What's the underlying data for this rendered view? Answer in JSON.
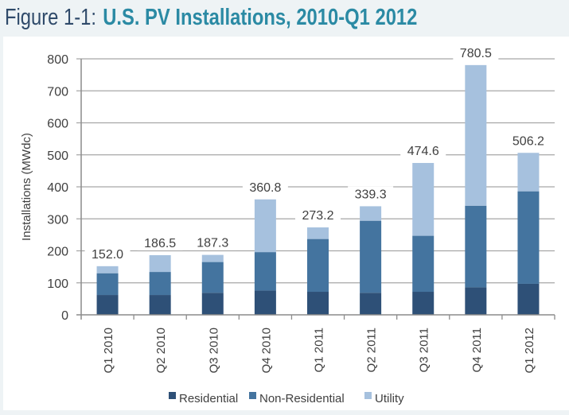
{
  "header": {
    "figure_label": "Figure 1-1:",
    "title": "U.S. PV Installations, 2010-Q1 2012"
  },
  "chart_data": {
    "type": "bar",
    "stacked": true,
    "title": "U.S. PV Installations, 2010-Q1 2012",
    "xlabel": "",
    "ylabel": "Installations (MWdc)",
    "ylim": [
      0,
      800
    ],
    "yticks": [
      0,
      100,
      200,
      300,
      400,
      500,
      600,
      700,
      800
    ],
    "grid": true,
    "legend_position": "bottom",
    "categories": [
      "Q1 2010",
      "Q2 2010",
      "Q3 2010",
      "Q4 2010",
      "Q1 2011",
      "Q2 2011",
      "Q3 2011",
      "Q4 2011",
      "Q1 2012"
    ],
    "series": [
      {
        "name": "Residential",
        "color": "#2e5077",
        "values": [
          62,
          62,
          69,
          76,
          72,
          69,
          72,
          86,
          97
        ]
      },
      {
        "name": "Non-Residential",
        "color": "#44749f",
        "values": [
          68,
          72,
          96,
          120,
          165,
          225,
          175,
          255,
          289
        ]
      },
      {
        "name": "Utility",
        "color": "#a6c1de",
        "values": [
          22,
          52.5,
          22.3,
          164.8,
          36.2,
          45.3,
          227.6,
          439.5,
          120.2
        ]
      }
    ],
    "totals": [
      152.0,
      186.5,
      187.3,
      360.8,
      273.2,
      339.3,
      474.6,
      780.5,
      506.2
    ],
    "total_labels": [
      "152.0",
      "186.5",
      "187.3",
      "360.8",
      "273.2",
      "339.3",
      "474.6",
      "780.5",
      "506.2"
    ]
  }
}
